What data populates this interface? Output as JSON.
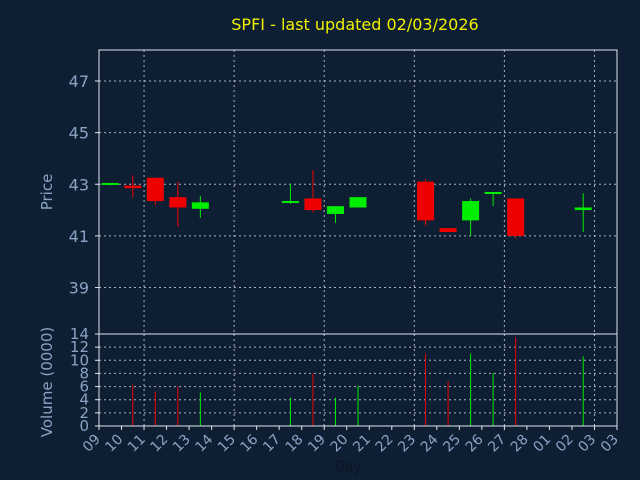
{
  "colors": {
    "background": "#0f1f33",
    "panel": "#0f1f33",
    "grid": "#cfd8e3",
    "axis": "#dfe6ee",
    "up": "#00ee00",
    "down": "#ee0000",
    "title": "#f0f000",
    "tick_text": "#8aa3c4"
  },
  "chart_data": [
    {
      "type": "candlestick",
      "title": "SPFI - last updated 02/03/2026",
      "ylabel": "Price",
      "ylim": [
        37.2,
        48.2
      ],
      "yticks": [
        39,
        41,
        43,
        45,
        47
      ],
      "grid": true,
      "candles": [
        {
          "day": "09",
          "open": 43.0,
          "high": 43.05,
          "low": 42.95,
          "close": 43.05
        },
        {
          "day": "10",
          "open": 42.95,
          "high": 43.35,
          "low": 42.5,
          "close": 42.85
        },
        {
          "day": "11",
          "open": 43.25,
          "high": 43.25,
          "low": 42.2,
          "close": 42.35
        },
        {
          "day": "12",
          "open": 42.5,
          "high": 43.1,
          "low": 41.35,
          "close": 42.1
        },
        {
          "day": "13",
          "open": 42.05,
          "high": 42.55,
          "low": 41.7,
          "close": 42.3
        },
        {
          "day": "17",
          "open": 42.3,
          "high": 43.0,
          "low": 42.25,
          "close": 42.35
        },
        {
          "day": "18",
          "open": 42.45,
          "high": 43.55,
          "low": 41.9,
          "close": 42.0
        },
        {
          "day": "19",
          "open": 41.85,
          "high": 42.15,
          "low": 41.5,
          "close": 42.15
        },
        {
          "day": "20",
          "open": 42.1,
          "high": 42.5,
          "low": 42.1,
          "close": 42.5
        },
        {
          "day": "23",
          "open": 43.1,
          "high": 43.2,
          "low": 41.4,
          "close": 41.6
        },
        {
          "day": "24",
          "open": 41.3,
          "high": 41.3,
          "low": 41.15,
          "close": 41.15
        },
        {
          "day": "25",
          "open": 41.6,
          "high": 42.45,
          "low": 41.0,
          "close": 42.35
        },
        {
          "day": "26",
          "open": 42.65,
          "high": 42.7,
          "low": 42.15,
          "close": 42.7
        },
        {
          "day": "27",
          "open": 42.45,
          "high": 42.45,
          "low": 40.9,
          "close": 41.0
        },
        {
          "day": "02",
          "open": 42.0,
          "high": 42.65,
          "low": 41.15,
          "close": 42.1
        }
      ]
    },
    {
      "type": "bar",
      "ylabel": "Volume (0000)",
      "xlabel": "Day",
      "ylim": [
        0,
        14
      ],
      "yticks": [
        0,
        2,
        4,
        6,
        8,
        10,
        12,
        14
      ],
      "grid": true,
      "categories": [
        "09",
        "10",
        "11",
        "12",
        "13",
        "14",
        "15",
        "16",
        "17",
        "18",
        "19",
        "20",
        "21",
        "22",
        "23",
        "24",
        "25",
        "26",
        "27",
        "28",
        "01",
        "02",
        "03"
      ],
      "bars": [
        {
          "day": "10",
          "value": 6.3,
          "direction": "down"
        },
        {
          "day": "11",
          "value": 5.2,
          "direction": "down"
        },
        {
          "day": "12",
          "value": 6.0,
          "direction": "down"
        },
        {
          "day": "13",
          "value": 5.1,
          "direction": "up"
        },
        {
          "day": "17",
          "value": 4.3,
          "direction": "up"
        },
        {
          "day": "18",
          "value": 8.0,
          "direction": "down"
        },
        {
          "day": "19",
          "value": 4.3,
          "direction": "up"
        },
        {
          "day": "20",
          "value": 6.1,
          "direction": "up"
        },
        {
          "day": "23",
          "value": 11.0,
          "direction": "down"
        },
        {
          "day": "24",
          "value": 6.8,
          "direction": "down"
        },
        {
          "day": "25",
          "value": 11.0,
          "direction": "up"
        },
        {
          "day": "26",
          "value": 8.1,
          "direction": "up"
        },
        {
          "day": "27",
          "value": 13.5,
          "direction": "down"
        },
        {
          "day": "02",
          "value": 10.6,
          "direction": "up"
        }
      ]
    }
  ]
}
